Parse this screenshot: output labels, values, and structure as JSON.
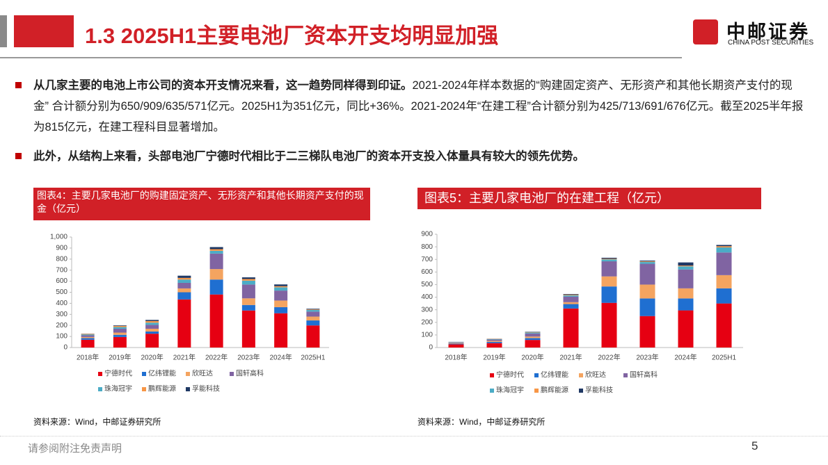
{
  "header": {
    "title": "1.3 2025H1主要电池厂资本开支均明显加强",
    "logo": "中邮证券",
    "logo_en": "CHINA POST SECURITIES"
  },
  "bullets": [
    {
      "bold": "从几家主要的电池上市公司的资本开支情况来看，这一趋势同样得到印证。",
      "text": "2021-2024年样本数据的“购建固定资产、无形资产和其他长期资产支付的现金” 合计额分别为650/909/635/571亿元。2025H1为351亿元，同比+36%。2021-2024年“在建工程”合计额分别为425/713/691/676亿元。截至2025半年报为815亿元，在建工程科目显著增加。"
    },
    {
      "bold": "此外，从结构上来看，头部电池厂宁德时代相比于二三梯队电池厂的资本开支投入体量具有较大的领先优势。"
    }
  ],
  "chart_data": [
    {
      "type": "bar",
      "stacked": true,
      "title": "图表4：主要几家电池厂的购建固定资产、无形资产和其他长期资产支付的现金（亿元）",
      "categories": [
        "2018年",
        "2019年",
        "2020年",
        "2021年",
        "2022年",
        "2023年",
        "2024年",
        "2025H1"
      ],
      "ylim": [
        0,
        1000
      ],
      "yticks": [
        0,
        100,
        200,
        300,
        400,
        500,
        600,
        700,
        800,
        900,
        {
          "value": 1000,
          "label": "1,000"
        }
      ],
      "series": [
        {
          "name": "宁德时代",
          "color": "#e60012",
          "values": [
            70,
            95,
            125,
            435,
            480,
            335,
            310,
            200
          ]
        },
        {
          "name": "亿纬锂能",
          "color": "#1f6fd1",
          "values": [
            15,
            20,
            20,
            65,
            135,
            50,
            55,
            45
          ]
        },
        {
          "name": "欣旺达",
          "color": "#f4a460",
          "values": [
            10,
            20,
            25,
            35,
            95,
            60,
            60,
            35
          ]
        },
        {
          "name": "国轩高科",
          "color": "#8064a2",
          "values": [
            15,
            35,
            35,
            50,
            140,
            125,
            90,
            45
          ]
        },
        {
          "name": "珠海冠宇",
          "color": "#4bacc6",
          "values": [
            8,
            15,
            20,
            30,
            25,
            35,
            30,
            15
          ]
        },
        {
          "name": "鹏辉能源",
          "color": "#f79646",
          "values": [
            5,
            10,
            15,
            15,
            15,
            15,
            10,
            5
          ]
        },
        {
          "name": "孚能科技",
          "color": "#1f3864",
          "values": [
            2,
            5,
            10,
            20,
            19,
            15,
            16,
            6
          ]
        }
      ],
      "source": "资料来源：Wind，中邮证券研究所"
    },
    {
      "type": "bar",
      "stacked": true,
      "title": "图表5：主要几家电池厂的在建工程（亿元）",
      "categories": [
        "2018年",
        "2019年",
        "2020年",
        "2021年",
        "2022年",
        "2023年",
        "2024年",
        "2025H1"
      ],
      "ylim": [
        0,
        900
      ],
      "yticks": [
        0,
        100,
        200,
        300,
        400,
        500,
        600,
        700,
        800,
        900
      ],
      "series": [
        {
          "name": "宁德时代",
          "color": "#e60012",
          "values": [
            25,
            35,
            60,
            310,
            355,
            250,
            295,
            350
          ]
        },
        {
          "name": "亿纬锂能",
          "color": "#1f6fd1",
          "values": [
            5,
            10,
            15,
            35,
            130,
            140,
            95,
            120
          ]
        },
        {
          "name": "欣旺达",
          "color": "#f4a460",
          "values": [
            5,
            8,
            12,
            15,
            80,
            110,
            80,
            105
          ]
        },
        {
          "name": "国轩高科",
          "color": "#8064a2",
          "values": [
            5,
            10,
            25,
            45,
            120,
            165,
            150,
            180
          ]
        },
        {
          "name": "珠海冠宇",
          "color": "#4bacc6",
          "values": [
            3,
            4,
            7,
            10,
            15,
            15,
            25,
            40
          ]
        },
        {
          "name": "鹏辉能源",
          "color": "#f79646",
          "values": [
            1,
            2,
            3,
            5,
            5,
            5,
            6,
            10
          ]
        },
        {
          "name": "孚能科技",
          "color": "#1f3864",
          "values": [
            1,
            1,
            3,
            5,
            8,
            6,
            25,
            10
          ]
        }
      ],
      "source": "资料来源：Wind，中邮证券研究所"
    }
  ],
  "footer": {
    "disclaimer": "请参阅附注免责声明",
    "page": "5"
  }
}
